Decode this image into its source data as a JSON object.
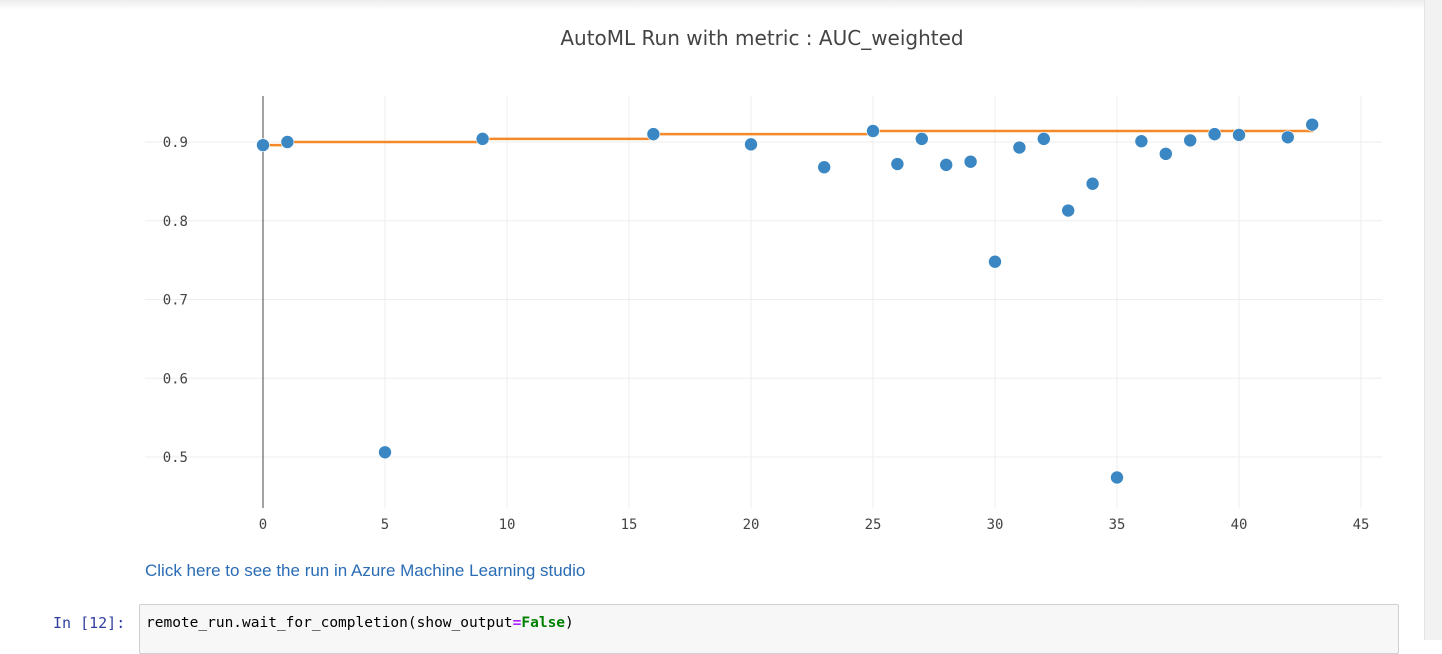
{
  "chart_data": {
    "type": "scatter",
    "title": "AutoML Run with metric : AUC_weighted",
    "xlim": [
      -0.3,
      45.5
    ],
    "ylim": [
      0.44,
      0.97
    ],
    "x_ticks": [
      0,
      5,
      10,
      15,
      20,
      25,
      30,
      35,
      40,
      45
    ],
    "y_ticks": [
      0.5,
      0.6,
      0.7,
      0.8,
      0.9
    ],
    "x_tick_labels": [
      "0",
      "5",
      "10",
      "15",
      "20",
      "25",
      "30",
      "35",
      "40",
      "45"
    ],
    "y_tick_labels": [
      "0.5",
      "0.6",
      "0.7",
      "0.8",
      "0.9"
    ],
    "grid": true,
    "series": [
      {
        "type": "scatter",
        "color": "#3a87c3",
        "x": [
          0,
          1,
          5,
          9,
          16,
          20,
          23,
          25,
          26,
          27,
          28,
          29,
          30,
          31,
          32,
          33,
          34,
          35,
          36,
          37,
          38,
          39,
          40,
          42,
          43
        ],
        "y": [
          0.896,
          0.9,
          0.506,
          0.904,
          0.91,
          0.897,
          0.868,
          0.914,
          0.872,
          0.904,
          0.871,
          0.875,
          0.748,
          0.893,
          0.904,
          0.813,
          0.847,
          0.474,
          0.901,
          0.885,
          0.902,
          0.91,
          0.909,
          0.906,
          0.922
        ]
      },
      {
        "type": "step-line",
        "color": "#f5892a",
        "x": [
          0,
          1,
          9,
          16,
          25,
          43
        ],
        "y": [
          0.896,
          0.9,
          0.904,
          0.91,
          0.914,
          0.922
        ]
      }
    ]
  },
  "link": {
    "text": "Click here to see the run in Azure Machine Learning studio"
  },
  "cell": {
    "prompt": "In [12]:",
    "code_prefix": "remote_run.wait_for_completion(show_output",
    "code_op": "=",
    "code_kw": "False",
    "code_suffix": ")"
  }
}
